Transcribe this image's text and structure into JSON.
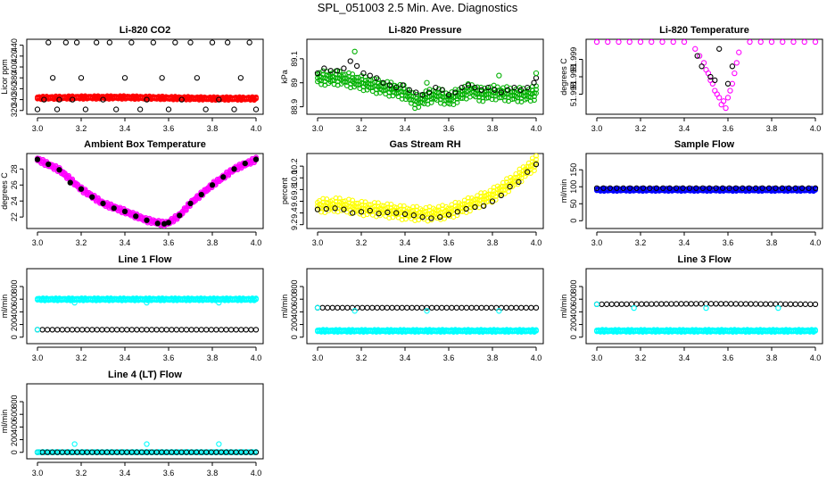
{
  "figure": {
    "title": "SPL_051003  2.5 Min. Ave. Diagnostics"
  },
  "chart_data": [
    {
      "type": "scatter",
      "title": "Li-820 CO2",
      "xlabel": "",
      "ylabel": "Licor ppm",
      "xlim": [
        3.0,
        4.0
      ],
      "ylim": [
        318,
        446
      ],
      "xticks": [
        3.0,
        3.2,
        3.4,
        3.6,
        3.8,
        4.0
      ],
      "yticks": [
        320,
        340,
        360,
        380,
        400,
        420,
        440
      ],
      "series": [
        {
          "name": "red",
          "color": "#ff0000",
          "style": "band",
          "x": [
            3.0,
            3.2,
            3.4,
            3.6,
            3.8,
            4.0
          ],
          "y": [
            343,
            344,
            344,
            343,
            342,
            342
          ],
          "spread": 1.5
        },
        {
          "name": "black",
          "color": "#000000",
          "style": "open",
          "x": [
            3.0,
            3.03,
            3.05,
            3.07,
            3.09,
            3.1,
            3.13,
            3.16,
            3.18,
            3.2,
            3.22,
            3.27,
            3.3,
            3.33,
            3.36,
            3.4,
            3.43,
            3.47,
            3.5,
            3.53,
            3.57,
            3.6,
            3.63,
            3.66,
            3.7,
            3.73,
            3.77,
            3.8,
            3.83,
            3.87,
            3.9,
            3.93,
            3.97,
            4.0
          ],
          "y": [
            322,
            340,
            445,
            380,
            322,
            340,
            445,
            340,
            445,
            380,
            322,
            445,
            340,
            445,
            322,
            380,
            445,
            322,
            340,
            445,
            380,
            322,
            445,
            340,
            445,
            380,
            322,
            445,
            340,
            445,
            322,
            380,
            445,
            322
          ]
        }
      ]
    },
    {
      "type": "scatter",
      "title": "Li-820 Pressure",
      "xlabel": "",
      "ylabel": "kPa",
      "xlim": [
        3.0,
        4.0
      ],
      "ylim": [
        88.88,
        89.17
      ],
      "xticks": [
        3.0,
        3.2,
        3.4,
        3.6,
        3.8,
        4.0
      ],
      "yticks": [
        88.9,
        89.0,
        89.1
      ],
      "ytick_labels": [
        "88.9",
        "89",
        "89.1"
      ],
      "series": [
        {
          "name": "green",
          "color": "#00b000",
          "style": "band",
          "x": [
            3.0,
            3.1,
            3.2,
            3.3,
            3.4,
            3.45,
            3.5,
            3.55,
            3.6,
            3.65,
            3.7,
            3.75,
            3.8,
            3.9,
            3.97,
            4.0
          ],
          "y": [
            89.02,
            89.02,
            89.0,
            88.98,
            88.96,
            88.92,
            88.94,
            88.95,
            88.93,
            88.95,
            88.97,
            88.95,
            88.96,
            88.95,
            88.95,
            88.96
          ],
          "spread": 0.015
        },
        {
          "name": "black",
          "color": "#000000",
          "style": "open",
          "x": [
            3.0,
            3.03,
            3.06,
            3.09,
            3.12,
            3.15,
            3.18,
            3.21,
            3.24,
            3.27,
            3.3,
            3.33,
            3.36,
            3.39,
            3.42,
            3.45,
            3.48,
            3.51,
            3.54,
            3.57,
            3.6,
            3.63,
            3.66,
            3.69,
            3.72,
            3.75,
            3.78,
            3.81,
            3.84,
            3.87,
            3.9,
            3.93,
            3.96,
            3.99,
            4.0
          ],
          "y": [
            89.04,
            89.06,
            89.05,
            89.05,
            89.06,
            89.09,
            89.07,
            89.04,
            89.03,
            89.02,
            89.0,
            88.99,
            88.98,
            88.99,
            88.97,
            88.96,
            88.95,
            88.96,
            88.98,
            88.97,
            88.95,
            88.96,
            88.98,
            88.99,
            88.98,
            88.97,
            88.98,
            88.97,
            88.96,
            88.97,
            88.98,
            88.97,
            88.98,
            89.0,
            89.02
          ]
        },
        {
          "name": "green-outliers",
          "color": "#00b000",
          "style": "open",
          "x": [
            3.17,
            3.5,
            3.83,
            4.0
          ],
          "y": [
            89.13,
            89.0,
            89.03,
            89.04
          ]
        }
      ]
    },
    {
      "type": "scatter",
      "title": "Li-820 Temperature",
      "xlabel": "",
      "ylabel": "degrees C",
      "xlim": [
        3.0,
        4.0
      ],
      "ylim": [
        51.9975,
        51.9995
      ],
      "xticks": [
        3.0,
        3.2,
        3.4,
        3.6,
        3.8,
        4.0
      ],
      "yticks": [
        51.998,
        51.9985,
        51.999
      ],
      "ytick_labels": [
        "51.998",
        "51.998",
        "51.999"
      ],
      "series": [
        {
          "name": "magenta",
          "color": "#ff00ff",
          "style": "open",
          "x": [
            3.0,
            3.05,
            3.1,
            3.15,
            3.2,
            3.25,
            3.3,
            3.35,
            3.4,
            3.45,
            3.47,
            3.49,
            3.5,
            3.51,
            3.52,
            3.53,
            3.54,
            3.55,
            3.56,
            3.57,
            3.58,
            3.59,
            3.6,
            3.61,
            3.62,
            3.63,
            3.64,
            3.65,
            3.7,
            3.75,
            3.8,
            3.85,
            3.9,
            3.95,
            4.0
          ],
          "y": [
            51.9995,
            51.9995,
            51.9995,
            51.9995,
            51.9995,
            51.9995,
            51.9995,
            51.9995,
            51.9995,
            51.9993,
            51.9991,
            51.9989,
            51.9987,
            51.9986,
            51.9984,
            51.9983,
            51.9981,
            51.998,
            51.9979,
            51.9977,
            51.9978,
            51.9976,
            51.9979,
            51.9981,
            51.9983,
            51.9986,
            51.9989,
            51.9992,
            51.9995,
            51.9995,
            51.9995,
            51.9995,
            51.9995,
            51.9995,
            51.9995
          ]
        },
        {
          "name": "black",
          "color": "#000000",
          "style": "open",
          "x": [
            3.46,
            3.48,
            3.52,
            3.54,
            3.56,
            3.6,
            3.62
          ],
          "y": [
            51.9991,
            51.9988,
            51.9985,
            51.9984,
            51.9993,
            51.9983,
            51.9988
          ]
        }
      ]
    },
    {
      "type": "scatter",
      "title": "Ambient Box Temperature",
      "xlabel": "",
      "ylabel": "degrees C",
      "xlim": [
        3.0,
        4.0
      ],
      "ylim": [
        20.9,
        29.6
      ],
      "xticks": [
        3.0,
        3.2,
        3.4,
        3.6,
        3.8,
        4.0
      ],
      "yticks": [
        22,
        24,
        26,
        28
      ],
      "series": [
        {
          "name": "magenta",
          "color": "#ff00ff",
          "style": "band",
          "x": [
            3.0,
            3.1,
            3.2,
            3.3,
            3.4,
            3.5,
            3.58,
            3.6,
            3.65,
            3.7,
            3.8,
            3.9,
            4.0
          ],
          "y": [
            29.2,
            27.9,
            25.5,
            23.7,
            22.7,
            21.6,
            21.15,
            21.3,
            22.2,
            23.7,
            26.0,
            28.0,
            29.2
          ],
          "spread": 0.15
        },
        {
          "name": "black",
          "color": "#000000",
          "style": "filled",
          "x": [
            3.0,
            3.05,
            3.1,
            3.15,
            3.2,
            3.25,
            3.3,
            3.35,
            3.4,
            3.45,
            3.5,
            3.55,
            3.58,
            3.6,
            3.65,
            3.7,
            3.75,
            3.8,
            3.85,
            3.9,
            3.95,
            4.0
          ],
          "y": [
            29.2,
            28.6,
            27.9,
            26.3,
            25.5,
            24.5,
            23.7,
            23.1,
            22.7,
            22.1,
            21.6,
            21.2,
            21.15,
            21.3,
            22.2,
            23.7,
            24.8,
            26.0,
            27.0,
            28.0,
            28.7,
            29.2
          ]
        }
      ]
    },
    {
      "type": "scatter",
      "title": "Gas Stream RH",
      "xlabel": "",
      "ylabel": "percent",
      "xlim": [
        3.0,
        4.0
      ],
      "ylim": [
        9.18,
        10.37
      ],
      "xticks": [
        3.0,
        3.2,
        3.4,
        3.6,
        3.8,
        4.0
      ],
      "yticks": [
        9.2,
        9.4,
        9.6,
        9.8,
        10.0,
        10.2
      ],
      "ytick_labels": [
        "9.2",
        "9.4",
        "9.6",
        "9.8",
        "10.0",
        "10.2"
      ],
      "series": [
        {
          "name": "yellow",
          "color": "#ffff00",
          "style": "band",
          "x": [
            3.0,
            3.1,
            3.2,
            3.3,
            3.4,
            3.5,
            3.6,
            3.7,
            3.8,
            3.9,
            4.0
          ],
          "y": [
            9.52,
            9.54,
            9.48,
            9.45,
            9.4,
            9.38,
            9.42,
            9.55,
            9.7,
            9.95,
            10.27
          ],
          "spread": 0.06
        },
        {
          "name": "black",
          "color": "#000000",
          "style": "open",
          "x": [
            3.0,
            3.04,
            3.08,
            3.12,
            3.16,
            3.2,
            3.24,
            3.28,
            3.32,
            3.36,
            3.4,
            3.44,
            3.48,
            3.52,
            3.56,
            3.6,
            3.64,
            3.68,
            3.72,
            3.76,
            3.8,
            3.84,
            3.88,
            3.92,
            3.96,
            4.0
          ],
          "y": [
            9.46,
            9.47,
            9.48,
            9.46,
            9.4,
            9.42,
            9.44,
            9.39,
            9.41,
            9.4,
            9.38,
            9.36,
            9.33,
            9.31,
            9.33,
            9.37,
            9.42,
            9.47,
            9.5,
            9.52,
            9.6,
            9.7,
            9.85,
            9.93,
            10.1,
            10.23
          ]
        }
      ]
    },
    {
      "type": "scatter",
      "title": "Sample Flow",
      "xlabel": "",
      "ylabel": "ml/min",
      "xlim": [
        3.0,
        4.0
      ],
      "ylim": [
        -15,
        190
      ],
      "xticks": [
        3.0,
        3.2,
        3.4,
        3.6,
        3.8,
        4.0
      ],
      "yticks": [
        0,
        50,
        100,
        150
      ],
      "series": [
        {
          "name": "blue",
          "color": "#0000ff",
          "style": "band",
          "x": [
            3.0,
            4.0
          ],
          "y": [
            91,
            91
          ],
          "spread": 2
        },
        {
          "name": "black",
          "color": "#000000",
          "style": "open",
          "x": [
            3.0,
            4.0
          ],
          "y": [
            96,
            96
          ],
          "n": 34
        }
      ]
    },
    {
      "type": "scatter",
      "title": "Line 1 Flow",
      "xlabel": "",
      "ylabel": "ml/min",
      "xlim": [
        3.0,
        4.0
      ],
      "ylim": [
        -60,
        1040
      ],
      "xticks": [
        3.0,
        3.2,
        3.4,
        3.6,
        3.8,
        4.0
      ],
      "yticks": [
        0,
        200,
        400,
        600,
        800
      ],
      "series": [
        {
          "name": "cyan",
          "color": "#00ffff",
          "style": "band",
          "x": [
            3.0,
            4.0
          ],
          "y": [
            598,
            598
          ],
          "spread": 10
        },
        {
          "name": "black",
          "color": "#000000",
          "style": "open",
          "x": [
            3.0,
            4.0
          ],
          "y": [
            118,
            118
          ],
          "n": 45
        },
        {
          "name": "cyan-low",
          "color": "#00ffff",
          "style": "open",
          "x": [
            3.17,
            3.5,
            3.83,
            3.0
          ],
          "y": [
            545,
            545,
            545,
            118
          ]
        }
      ]
    },
    {
      "type": "scatter",
      "title": "Line 2 Flow",
      "xlabel": "",
      "ylabel": "ml/min",
      "xlim": [
        3.0,
        4.0
      ],
      "ylim": [
        -60,
        1040
      ],
      "xticks": [
        3.0,
        3.2,
        3.4,
        3.6,
        3.8,
        4.0
      ],
      "yticks": [
        0,
        200,
        400,
        600,
        800
      ],
      "series": [
        {
          "name": "cyan",
          "color": "#00ffff",
          "style": "band",
          "x": [
            3.0,
            4.0
          ],
          "y": [
            100,
            100
          ],
          "spread": 10
        },
        {
          "name": "black",
          "color": "#000000",
          "style": "open",
          "x": [
            3.0,
            4.0
          ],
          "y": [
            465,
            465
          ],
          "n": 45
        },
        {
          "name": "cyan-low",
          "color": "#00ffff",
          "style": "open",
          "x": [
            3.0,
            3.17,
            3.5,
            3.83
          ],
          "y": [
            465,
            415,
            415,
            415
          ]
        }
      ]
    },
    {
      "type": "scatter",
      "title": "Line 3 Flow",
      "xlabel": "",
      "ylabel": "ml/min",
      "xlim": [
        3.0,
        4.0
      ],
      "ylim": [
        -60,
        1040
      ],
      "xticks": [
        3.0,
        3.2,
        3.4,
        3.6,
        3.8,
        4.0
      ],
      "yticks": [
        0,
        200,
        400,
        600,
        800
      ],
      "series": [
        {
          "name": "cyan",
          "color": "#00ffff",
          "style": "band",
          "x": [
            3.0,
            4.0
          ],
          "y": [
            100,
            100
          ],
          "spread": 10
        },
        {
          "name": "black",
          "color": "#000000",
          "style": "open",
          "x": [
            3.0,
            3.5,
            4.0
          ],
          "y": [
            520,
            528,
            520
          ],
          "n": 45
        },
        {
          "name": "cyan-low",
          "color": "#00ffff",
          "style": "open",
          "x": [
            3.0,
            3.17,
            3.5,
            3.83
          ],
          "y": [
            520,
            460,
            460,
            460
          ]
        }
      ]
    },
    {
      "type": "scatter",
      "title": "Line 4 (LT) Flow",
      "xlabel": "",
      "ylabel": "ml/min",
      "xlim": [
        3.0,
        4.0
      ],
      "ylim": [
        -60,
        1040
      ],
      "xticks": [
        3.0,
        3.2,
        3.4,
        3.6,
        3.8,
        4.0
      ],
      "yticks": [
        0,
        200,
        400,
        600,
        800
      ],
      "series": [
        {
          "name": "cyan",
          "color": "#00ffff",
          "style": "band",
          "x": [
            3.0,
            4.0
          ],
          "y": [
            2,
            2
          ],
          "spread": 4
        },
        {
          "name": "black",
          "color": "#000000",
          "style": "open",
          "x": [
            3.0,
            4.0
          ],
          "y": [
            2,
            2
          ],
          "n": 45
        },
        {
          "name": "cyan-high",
          "color": "#00ffff",
          "style": "open",
          "x": [
            3.0,
            3.17,
            3.5,
            3.83
          ],
          "y": [
            2,
            130,
            130,
            130
          ]
        }
      ]
    }
  ]
}
